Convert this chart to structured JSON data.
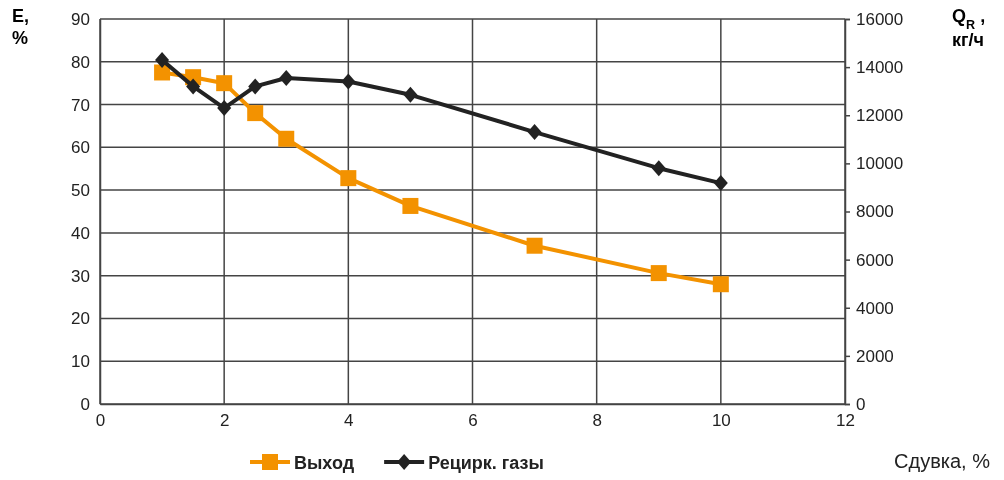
{
  "chart_data": {
    "type": "line",
    "xlabel": "Сдувка, %",
    "ylabel": "E, %",
    "y2label": "Q$_{R}$ , кг/ч",
    "x": [
      1,
      1.5,
      2,
      2.5,
      3,
      4,
      5,
      7,
      9,
      10
    ],
    "series": [
      {
        "name": "Выход",
        "color": "#f39200",
        "marker": "square",
        "values": [
          77.5,
          76.4,
          75,
          68,
          62,
          52.8,
          46.3,
          37,
          30.6,
          28
        ]
      },
      {
        "name": "Рецирк. газы",
        "color": "#222222",
        "marker": "diamond",
        "axis": "y2",
        "values": [
          14300,
          13200,
          12300,
          13200,
          13550,
          13400,
          12850,
          11300,
          9800,
          9180
        ]
      }
    ],
    "xlim": [
      0,
      12
    ],
    "xticks": [
      0,
      2,
      4,
      6,
      8,
      10,
      12
    ],
    "ylim": [
      0,
      90
    ],
    "yticks": [
      0,
      10,
      20,
      30,
      40,
      50,
      60,
      70,
      80,
      90
    ],
    "y2lim": [
      0,
      16000
    ],
    "y2ticks": [
      0,
      2000,
      4000,
      6000,
      8000,
      10000,
      12000,
      14000,
      16000
    ],
    "grid": true,
    "legend": "bottom",
    "line_style": "solid"
  }
}
